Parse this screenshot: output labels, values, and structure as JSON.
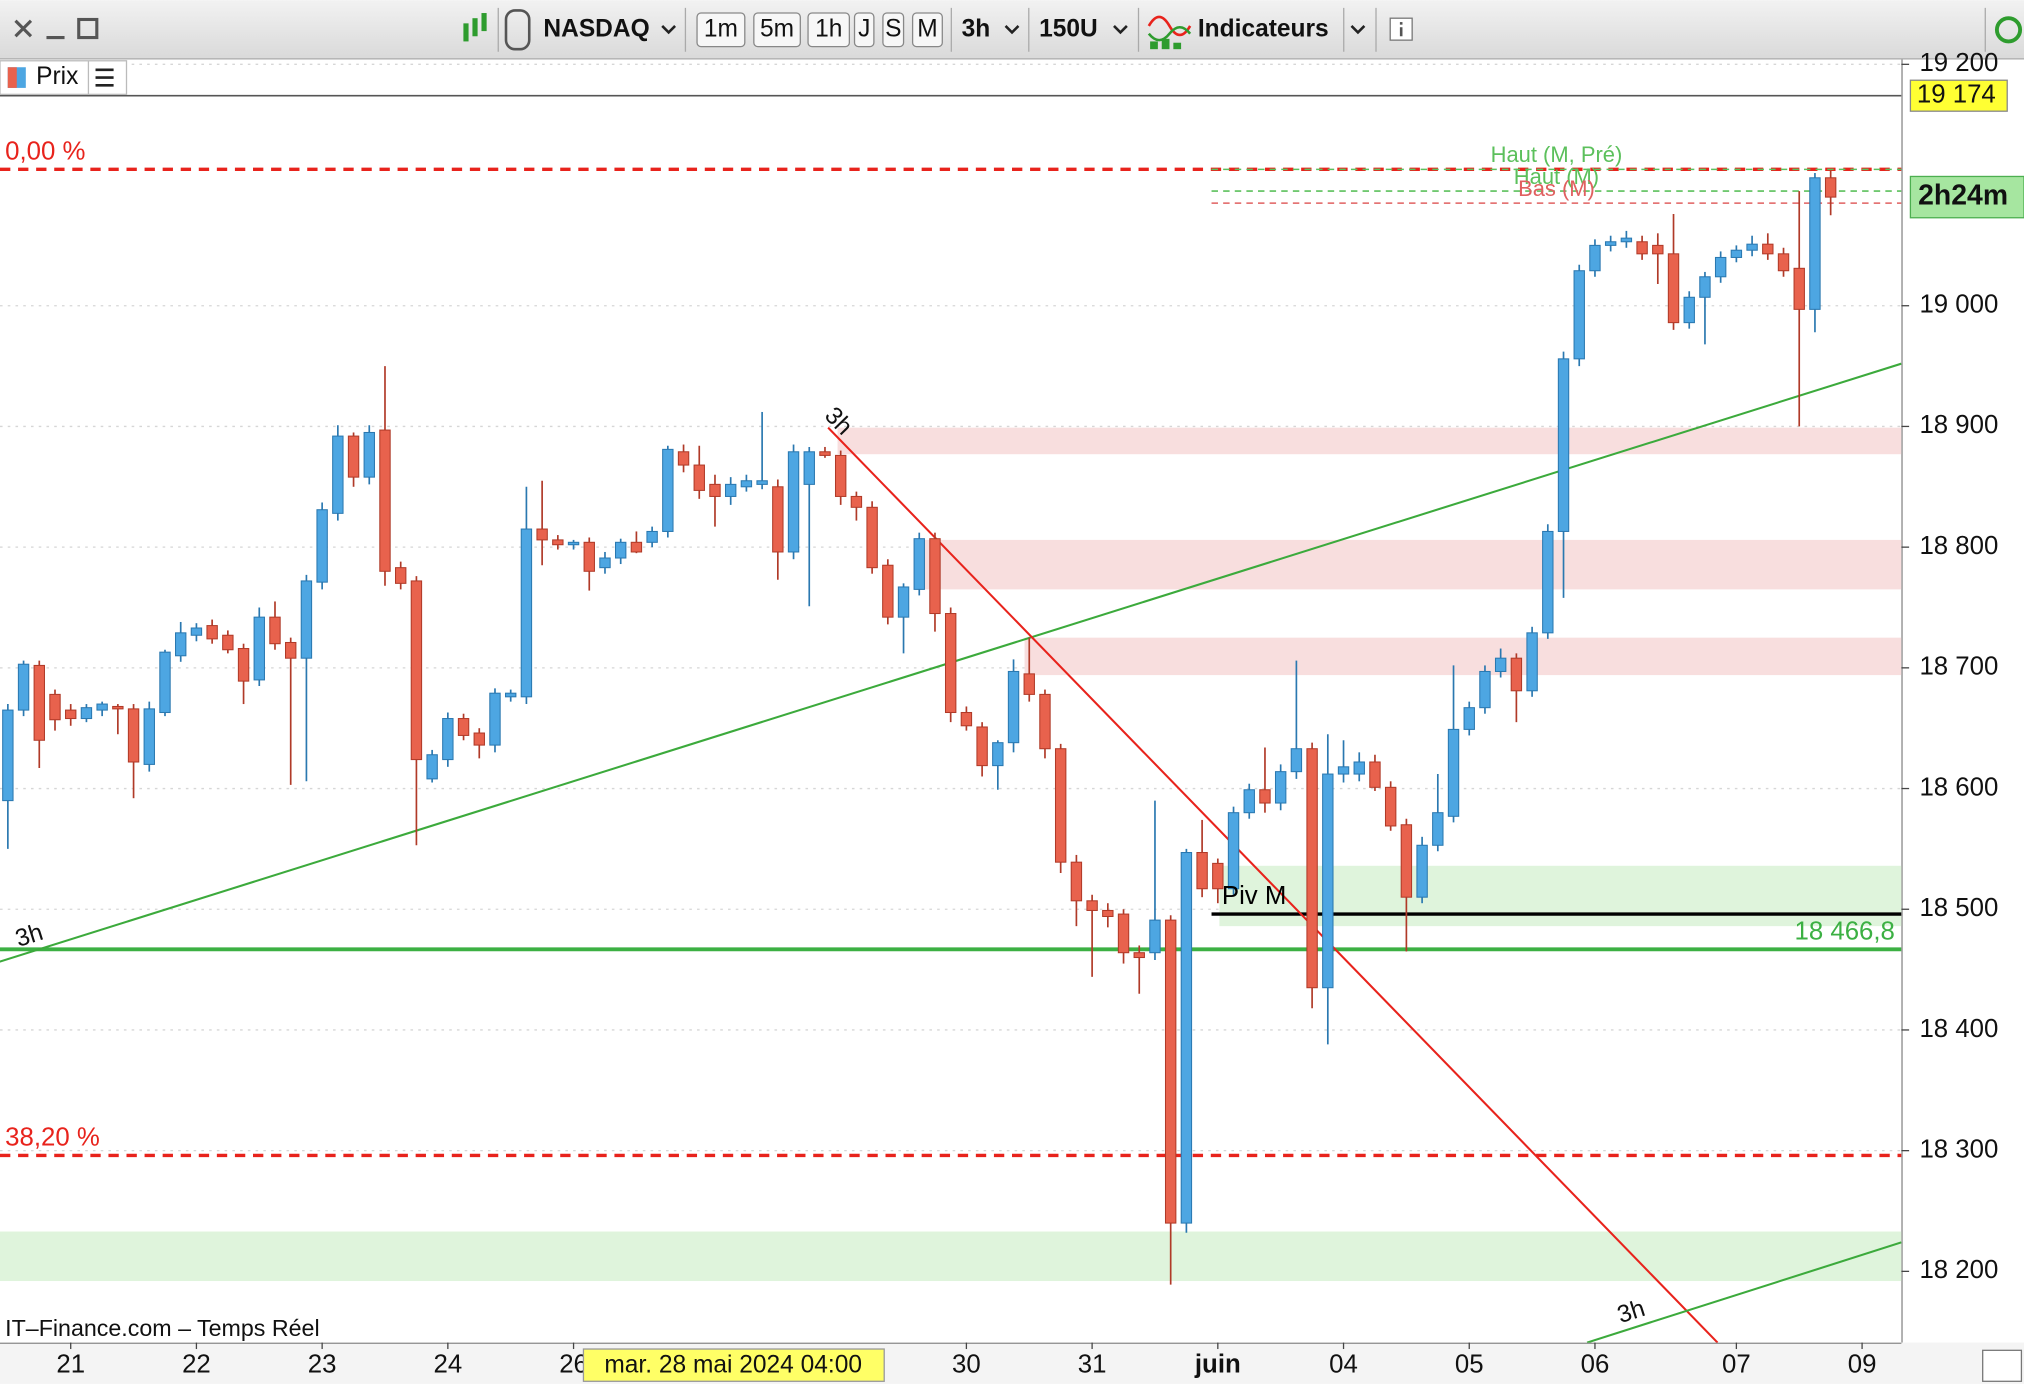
{
  "toolbar": {
    "symbol": "NASDAQ",
    "timeframes": [
      "1m",
      "5m",
      "1h",
      "J",
      "S",
      "M"
    ],
    "interval": "3h",
    "units": "150U",
    "indicators": "Indicateurs"
  },
  "chart_data": {
    "type": "candlestick",
    "price_label": "Prix",
    "source": "IT–Finance.com – Temps Réel",
    "crosshair_label": "mar. 28 mai 2024 04:00",
    "categories": [
      null,
      null,
      null,
      null,
      "21",
      null,
      null,
      null,
      null,
      null,
      null,
      null,
      "22",
      null,
      null,
      null,
      null,
      null,
      null,
      null,
      "23",
      null,
      null,
      null,
      null,
      null,
      null,
      null,
      "24",
      null,
      null,
      null,
      null,
      null,
      null,
      null,
      "26",
      null,
      null,
      null,
      null,
      null,
      null,
      null,
      null,
      null,
      null,
      null,
      null,
      null,
      null,
      null,
      null,
      null,
      null,
      null,
      null,
      null,
      null,
      null,
      null,
      "30",
      null,
      null,
      null,
      null,
      null,
      null,
      null,
      "31",
      null,
      null,
      null,
      null,
      null,
      null,
      null,
      "juin",
      null,
      null,
      null,
      null,
      null,
      null,
      null,
      "04",
      null,
      null,
      null,
      null,
      null,
      null,
      null,
      "05",
      null,
      null,
      null,
      null,
      null,
      null,
      null,
      "06",
      null,
      null,
      null,
      null,
      null,
      null,
      null,
      null,
      "07",
      null,
      null,
      null,
      null,
      null,
      null,
      null,
      "09",
      null,
      null
    ],
    "open": [
      18590,
      18665,
      18702,
      18678,
      18665,
      18658,
      18665,
      18668,
      18666,
      18620,
      18663,
      18710,
      18727,
      18735,
      18727,
      18716,
      18690,
      18742,
      18721,
      18708,
      18771,
      18828,
      18892,
      18858,
      18897,
      18783,
      18772,
      18608,
      18624,
      18658,
      18646,
      18636,
      18676,
      18676,
      18815,
      18806,
      18802,
      18804,
      18783,
      18791,
      18804,
      18804,
      18813,
      18879,
      18868,
      18852,
      18842,
      18850,
      18852,
      18850,
      18796,
      18852,
      18879,
      18876,
      18842,
      18833,
      18785,
      18742,
      18765,
      18807,
      18745,
      18663,
      18651,
      18619,
      18638,
      18695,
      18678,
      18633,
      18539,
      18507,
      18499,
      18496,
      18464,
      18464,
      18491,
      18240,
      18547,
      18538,
      18517,
      18580,
      18599,
      18588,
      18614,
      18633,
      18435,
      18612,
      18612,
      18622,
      18601,
      18570,
      18510,
      18553,
      18577,
      18649,
      18667,
      18697,
      18708,
      18681,
      18729,
      18813,
      18956,
      19029,
      19050,
      19053,
      19053,
      19050,
      19043,
      18986,
      19007,
      19024,
      19040,
      19046,
      19051,
      19043,
      19031,
      18997,
      19106,
      null,
      null,
      null,
      null
    ],
    "high": [
      18670,
      18706,
      18706,
      18682,
      18670,
      18670,
      18672,
      18670,
      18670,
      18672,
      18715,
      18738,
      18737,
      18740,
      18731,
      18720,
      18750,
      18755,
      18725,
      18777,
      18837,
      18901,
      18895,
      18901,
      18950,
      18788,
      18776,
      18632,
      18663,
      18662,
      18650,
      18683,
      18682,
      18850,
      18855,
      18810,
      18806,
      18808,
      18796,
      18807,
      18813,
      18817,
      18884,
      18885,
      18884,
      18860,
      18858,
      18860,
      18912,
      18856,
      18885,
      18883,
      18883,
      18880,
      18846,
      18838,
      18790,
      18770,
      18812,
      18812,
      18750,
      18668,
      18655,
      18640,
      18707,
      18725,
      18682,
      18637,
      18545,
      18512,
      18505,
      18500,
      18470,
      18590,
      18495,
      18550,
      18574,
      18542,
      18585,
      18604,
      18634,
      18620,
      18706,
      18638,
      18645,
      18640,
      18630,
      18628,
      18606,
      18575,
      18560,
      18612,
      18702,
      18672,
      18702,
      18716,
      18712,
      18734,
      18819,
      18962,
      19034,
      19055,
      19058,
      19062,
      19058,
      19060,
      19076,
      19012,
      19028,
      19045,
      19050,
      19058,
      19060,
      19048,
      19095,
      19110,
      19112,
      null,
      null,
      null,
      null
    ],
    "low": [
      18550,
      18660,
      18617,
      18648,
      18652,
      18655,
      18660,
      18645,
      18592,
      18614,
      18660,
      18705,
      18722,
      18720,
      18712,
      18670,
      18685,
      18715,
      18603,
      18606,
      18765,
      18822,
      18850,
      18852,
      18768,
      18765,
      18553,
      18605,
      18618,
      18640,
      18625,
      18630,
      18672,
      18670,
      18785,
      18798,
      18798,
      18764,
      18778,
      18786,
      18795,
      18800,
      18808,
      18862,
      18840,
      18817,
      18835,
      18846,
      18848,
      18773,
      18790,
      18751,
      18874,
      18835,
      18822,
      18778,
      18736,
      18712,
      18760,
      18730,
      18655,
      18648,
      18610,
      18599,
      18630,
      18672,
      18625,
      18530,
      18486,
      18444,
      18485,
      18455,
      18430,
      18458,
      18189,
      18232,
      18510,
      18505,
      18512,
      18575,
      18580,
      18582,
      18608,
      18418,
      18388,
      18605,
      18606,
      18598,
      18565,
      18465,
      18505,
      18548,
      18572,
      18644,
      18662,
      18692,
      18655,
      18676,
      18724,
      18758,
      18950,
      19024,
      19045,
      19048,
      19038,
      19018,
      18980,
      18981,
      18968,
      19019,
      19036,
      19041,
      19038,
      19024,
      18900,
      18978,
      19075,
      null,
      null,
      null,
      null
    ],
    "close": [
      18665,
      18703,
      18640,
      18657,
      18658,
      18667,
      18670,
      18666,
      18622,
      18666,
      18713,
      18729,
      18733,
      18724,
      18715,
      18689,
      18742,
      18720,
      18708,
      18772,
      18831,
      18892,
      18858,
      18895,
      18780,
      18770,
      18624,
      18628,
      18658,
      18644,
      18636,
      18679,
      18679,
      18815,
      18806,
      18802,
      18804,
      18780,
      18791,
      18804,
      18796,
      18813,
      18881,
      18868,
      18847,
      18842,
      18852,
      18855,
      18855,
      18796,
      18879,
      18879,
      18876,
      18842,
      18833,
      18783,
      18742,
      18767,
      18807,
      18745,
      18663,
      18652,
      18619,
      18638,
      18697,
      18678,
      18633,
      18539,
      18507,
      18499,
      18494,
      18464,
      18460,
      18491,
      18240,
      18547,
      18517,
      18517,
      18580,
      18599,
      18588,
      18614,
      18633,
      18435,
      18612,
      18618,
      18622,
      18601,
      18569,
      18510,
      18553,
      18580,
      18649,
      18667,
      18697,
      18708,
      18681,
      18729,
      18813,
      18956,
      19029,
      19050,
      19053,
      19056,
      19043,
      19043,
      18986,
      19007,
      19024,
      19040,
      19046,
      19051,
      19043,
      19029,
      18997,
      19106,
      19090,
      null,
      null,
      null,
      null
    ],
    "up_color": "#4da6e2",
    "down_color": "#e8624d",
    "ylim": [
      18141,
      19204
    ],
    "yticks": [
      {
        "value": 18200,
        "label": "18 200"
      },
      {
        "value": 18300,
        "label": "18 300"
      },
      {
        "value": 18400,
        "label": "18 400"
      },
      {
        "value": 18500,
        "label": "18 500"
      },
      {
        "value": 18600,
        "label": "18 600"
      },
      {
        "value": 18700,
        "label": "18 700"
      },
      {
        "value": 18800,
        "label": "18 800"
      },
      {
        "value": 18900,
        "label": "18 900"
      },
      {
        "value": 19000,
        "label": "19 000"
      },
      {
        "value": 19200,
        "label": "19 200"
      }
    ],
    "grid": true,
    "last_price": {
      "value": 19174,
      "label": "19 174"
    },
    "countdown": "2h24m",
    "levels": [
      {
        "name": "0,00 %",
        "value": 19113,
        "color": "#e8231c",
        "style": "fib"
      },
      {
        "name": "38,20 %",
        "value": 18296,
        "color": "#e8231c",
        "style": "fib"
      },
      {
        "name": "Haut (M, Pré)",
        "value": 19113,
        "color": "#5cc05c",
        "style": "pivot",
        "from_index": 76.6
      },
      {
        "name": "Haut (M)",
        "value": 19095,
        "color": "#5cc05c",
        "style": "pivot",
        "from_index": 76.6
      },
      {
        "name": "Bas (M)",
        "value": 19085,
        "color": "#e06060",
        "style": "pivot",
        "from_index": 76.6
      },
      {
        "name": "Piv M",
        "value": 18496,
        "color": "#000000",
        "style": "pivot-solid",
        "from_index": 76.6
      },
      {
        "value": 18466.8,
        "value_label": "18 466,8",
        "color": "#3cb043",
        "style": "support"
      }
    ],
    "zones": [
      {
        "from": 18877,
        "to": 18899,
        "from_index": 53.3,
        "color": "#f8dede"
      },
      {
        "from": 18765,
        "to": 18806,
        "from_index": 58.4,
        "color": "#f8dede"
      },
      {
        "from": 18694,
        "to": 18725,
        "from_index": 65.2,
        "color": "#f8dede"
      },
      {
        "from": 18486,
        "to": 18536,
        "from_index": 77.6,
        "color": "#dff4dc"
      },
      {
        "from": 18192,
        "to": 18233,
        "from_index": -0.5,
        "color": "#dff4dc"
      }
    ],
    "trendlines": [
      {
        "label": "3h",
        "color": "#3caa3c",
        "x": [
          -0.66,
          120.5
        ],
        "y": [
          18456,
          18952
        ]
      },
      {
        "label": "3h",
        "color": "#e8231c",
        "x": [
          52.2,
          108.8
        ],
        "y": [
          18899,
          18141
        ]
      },
      {
        "label": "3h",
        "color": "#3caa3c",
        "x": [
          100.5,
          120.5
        ],
        "y": [
          18141,
          18224
        ]
      }
    ]
  }
}
